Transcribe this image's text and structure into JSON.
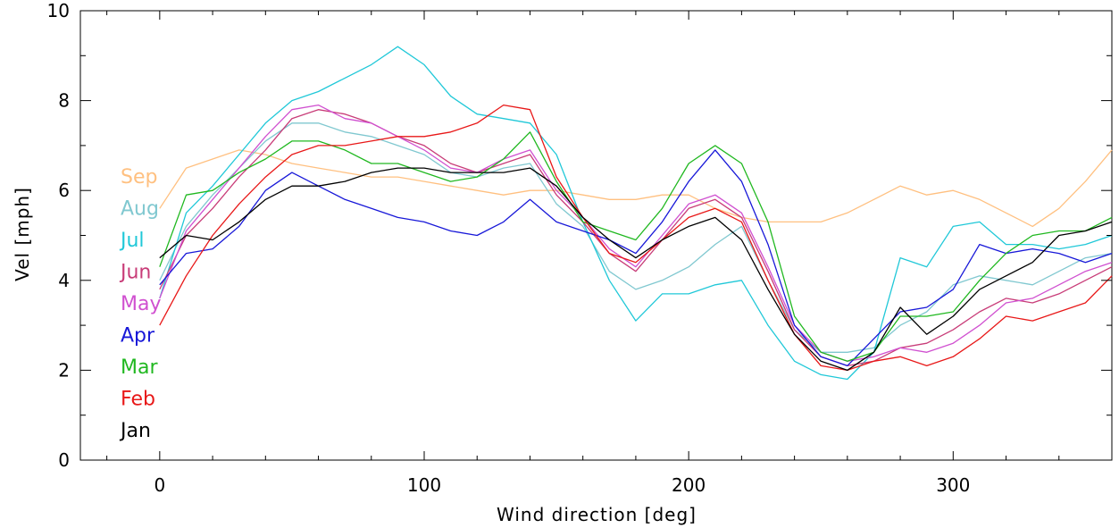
{
  "chart_data": {
    "type": "line",
    "title": "",
    "xlabel": "Wind direction [deg]",
    "ylabel": "Vel [mph]",
    "xlim": [
      -30,
      360
    ],
    "ylim": [
      0,
      10
    ],
    "xticks": [
      0,
      100,
      200,
      300
    ],
    "yticks": [
      0,
      2,
      4,
      6,
      8,
      10
    ],
    "grid": false,
    "legend_position": "left",
    "series": [
      {
        "name": "Sep",
        "color": "#ffc080",
        "x": [
          0,
          10,
          20,
          30,
          40,
          50,
          60,
          70,
          80,
          90,
          100,
          110,
          120,
          130,
          140,
          150,
          160,
          170,
          180,
          190,
          200,
          210,
          220,
          230,
          240,
          250,
          260,
          270,
          280,
          290,
          300,
          310,
          320,
          330,
          340,
          350,
          360
        ],
        "y": [
          5.6,
          6.5,
          6.7,
          6.9,
          6.8,
          6.6,
          6.5,
          6.4,
          6.3,
          6.3,
          6.2,
          6.1,
          6.0,
          5.9,
          6.0,
          6.0,
          5.9,
          5.8,
          5.8,
          5.9,
          5.9,
          5.6,
          5.4,
          5.3,
          5.3,
          5.3,
          5.5,
          5.8,
          6.1,
          5.9,
          6.0,
          5.8,
          5.5,
          5.2,
          5.6,
          6.2,
          6.9
        ]
      },
      {
        "name": "Aug",
        "color": "#80c8d0",
        "x": [
          0,
          10,
          20,
          30,
          40,
          50,
          60,
          70,
          80,
          90,
          100,
          110,
          120,
          130,
          140,
          150,
          160,
          170,
          180,
          190,
          200,
          210,
          220,
          230,
          240,
          250,
          260,
          270,
          280,
          290,
          300,
          310,
          320,
          330,
          340,
          350,
          360
        ],
        "y": [
          4.0,
          5.2,
          5.9,
          6.5,
          7.1,
          7.5,
          7.5,
          7.3,
          7.2,
          7.0,
          6.8,
          6.4,
          6.3,
          6.5,
          6.6,
          5.7,
          5.2,
          4.2,
          3.8,
          4.0,
          4.3,
          4.8,
          5.2,
          4.0,
          2.9,
          2.4,
          2.4,
          2.5,
          3.0,
          3.3,
          3.9,
          4.1,
          4.0,
          3.9,
          4.2,
          4.5,
          4.6
        ]
      },
      {
        "name": "Jul",
        "color": "#20c8d8",
        "x": [
          0,
          10,
          20,
          30,
          40,
          50,
          60,
          70,
          80,
          90,
          100,
          110,
          120,
          130,
          140,
          150,
          160,
          170,
          180,
          190,
          200,
          210,
          220,
          230,
          240,
          250,
          260,
          270,
          280,
          290,
          300,
          310,
          320,
          330,
          340,
          350,
          360
        ],
        "y": [
          3.6,
          5.5,
          6.1,
          6.8,
          7.5,
          8.0,
          8.2,
          8.5,
          8.8,
          9.2,
          8.8,
          8.1,
          7.7,
          7.6,
          7.5,
          6.8,
          5.3,
          4.0,
          3.1,
          3.7,
          3.7,
          3.9,
          4.0,
          3.0,
          2.2,
          1.9,
          1.8,
          2.4,
          4.5,
          4.3,
          5.2,
          5.3,
          4.8,
          4.8,
          4.7,
          4.8,
          5.0
        ]
      },
      {
        "name": "Jun",
        "color": "#c83c78",
        "x": [
          0,
          10,
          20,
          30,
          40,
          50,
          60,
          70,
          80,
          90,
          100,
          110,
          120,
          130,
          140,
          150,
          160,
          170,
          180,
          190,
          200,
          210,
          220,
          230,
          240,
          250,
          260,
          270,
          280,
          290,
          300,
          310,
          320,
          330,
          340,
          350,
          360
        ],
        "y": [
          3.8,
          5.0,
          5.6,
          6.3,
          6.9,
          7.6,
          7.8,
          7.7,
          7.5,
          7.2,
          7.0,
          6.6,
          6.4,
          6.6,
          6.8,
          5.9,
          5.3,
          4.6,
          4.2,
          4.9,
          5.6,
          5.8,
          5.4,
          4.2,
          2.9,
          2.3,
          2.1,
          2.2,
          2.5,
          2.6,
          2.9,
          3.3,
          3.6,
          3.5,
          3.7,
          4.0,
          4.3
        ]
      },
      {
        "name": "May",
        "color": "#d050d0",
        "x": [
          0,
          10,
          20,
          30,
          40,
          50,
          60,
          70,
          80,
          90,
          100,
          110,
          120,
          130,
          140,
          150,
          160,
          170,
          180,
          190,
          200,
          210,
          220,
          230,
          240,
          250,
          260,
          270,
          280,
          290,
          300,
          310,
          320,
          330,
          340,
          350,
          360
        ],
        "y": [
          3.6,
          5.1,
          5.8,
          6.5,
          7.2,
          7.8,
          7.9,
          7.6,
          7.5,
          7.2,
          6.9,
          6.5,
          6.4,
          6.7,
          6.9,
          6.0,
          5.4,
          4.7,
          4.3,
          5.0,
          5.7,
          5.9,
          5.5,
          4.3,
          3.0,
          2.4,
          2.2,
          2.3,
          2.5,
          2.4,
          2.6,
          3.0,
          3.5,
          3.6,
          3.9,
          4.2,
          4.4
        ]
      },
      {
        "name": "Apr",
        "color": "#1818d8",
        "x": [
          0,
          10,
          20,
          30,
          40,
          50,
          60,
          70,
          80,
          90,
          100,
          110,
          120,
          130,
          140,
          150,
          160,
          170,
          180,
          190,
          200,
          210,
          220,
          230,
          240,
          250,
          260,
          270,
          280,
          290,
          300,
          310,
          320,
          330,
          340,
          350,
          360
        ],
        "y": [
          3.9,
          4.6,
          4.7,
          5.2,
          6.0,
          6.4,
          6.1,
          5.8,
          5.6,
          5.4,
          5.3,
          5.1,
          5.0,
          5.3,
          5.8,
          5.3,
          5.1,
          4.9,
          4.6,
          5.3,
          6.2,
          6.9,
          6.2,
          4.8,
          3.0,
          2.3,
          2.1,
          2.7,
          3.3,
          3.4,
          3.8,
          4.8,
          4.6,
          4.7,
          4.6,
          4.4,
          4.6
        ]
      },
      {
        "name": "Mar",
        "color": "#20b820",
        "x": [
          0,
          10,
          20,
          30,
          40,
          50,
          60,
          70,
          80,
          90,
          100,
          110,
          120,
          130,
          140,
          150,
          160,
          170,
          180,
          190,
          200,
          210,
          220,
          230,
          240,
          250,
          260,
          270,
          280,
          290,
          300,
          310,
          320,
          330,
          340,
          350,
          360
        ],
        "y": [
          4.3,
          5.9,
          6.0,
          6.4,
          6.7,
          7.1,
          7.1,
          6.9,
          6.6,
          6.6,
          6.4,
          6.2,
          6.3,
          6.7,
          7.3,
          6.2,
          5.3,
          5.1,
          4.9,
          5.6,
          6.6,
          7.0,
          6.6,
          5.3,
          3.2,
          2.4,
          2.2,
          2.4,
          3.2,
          3.2,
          3.3,
          4.0,
          4.6,
          5.0,
          5.1,
          5.1,
          5.4
        ]
      },
      {
        "name": "Feb",
        "color": "#e81818",
        "x": [
          0,
          10,
          20,
          30,
          40,
          50,
          60,
          70,
          80,
          90,
          100,
          110,
          120,
          130,
          140,
          150,
          160,
          170,
          180,
          190,
          200,
          210,
          220,
          230,
          240,
          250,
          260,
          270,
          280,
          290,
          300,
          310,
          320,
          330,
          340,
          350,
          360
        ],
        "y": [
          3.0,
          4.1,
          5.0,
          5.7,
          6.3,
          6.8,
          7.0,
          7.0,
          7.1,
          7.2,
          7.2,
          7.3,
          7.5,
          7.9,
          7.8,
          6.3,
          5.4,
          4.6,
          4.4,
          4.9,
          5.4,
          5.6,
          5.3,
          4.0,
          2.8,
          2.1,
          2.0,
          2.2,
          2.3,
          2.1,
          2.3,
          2.7,
          3.2,
          3.1,
          3.3,
          3.5,
          4.1
        ]
      },
      {
        "name": "Jan",
        "color": "#000000",
        "x": [
          0,
          10,
          20,
          30,
          40,
          50,
          60,
          70,
          80,
          90,
          100,
          110,
          120,
          130,
          140,
          150,
          160,
          170,
          180,
          190,
          200,
          210,
          220,
          230,
          240,
          250,
          260,
          270,
          280,
          290,
          300,
          310,
          320,
          330,
          340,
          350,
          360
        ],
        "y": [
          4.5,
          5.0,
          4.9,
          5.3,
          5.8,
          6.1,
          6.1,
          6.2,
          6.4,
          6.5,
          6.5,
          6.4,
          6.4,
          6.4,
          6.5,
          6.1,
          5.4,
          4.9,
          4.5,
          4.9,
          5.2,
          5.4,
          4.9,
          3.8,
          2.8,
          2.2,
          2.0,
          2.4,
          3.4,
          2.8,
          3.2,
          3.8,
          4.1,
          4.4,
          5.0,
          5.1,
          5.3
        ]
      }
    ]
  }
}
